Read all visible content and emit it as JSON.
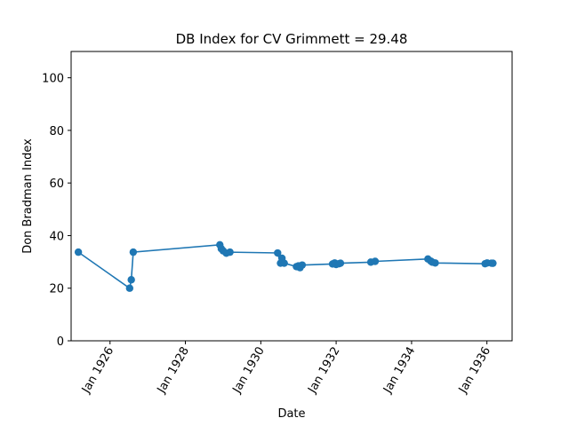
{
  "chart_data": {
    "type": "line",
    "title": "DB Index for CV Grimmett = 29.48",
    "xlabel": "Date",
    "ylabel": "Don Bradman Index",
    "ylim": [
      0,
      110
    ],
    "yticks": [
      0,
      20,
      40,
      60,
      80,
      100
    ],
    "xlim": [
      "1924-12-20",
      "1936-09-01"
    ],
    "xticks": [
      {
        "date": "1926-01-01",
        "label": "Jan 1926"
      },
      {
        "date": "1928-01-01",
        "label": "Jan 1928"
      },
      {
        "date": "1930-01-01",
        "label": "Jan 1930"
      },
      {
        "date": "1932-01-01",
        "label": "Jan 1932"
      },
      {
        "date": "1934-01-01",
        "label": "Jan 1934"
      },
      {
        "date": "1936-01-01",
        "label": "Jan 1936"
      }
    ],
    "grid": false,
    "color": "#1f77b4",
    "series": [
      {
        "points": [
          {
            "x": "1925-02-28",
            "y": 33.7
          },
          {
            "x": "1926-07-10",
            "y": 20.0
          },
          {
            "x": "1926-07-26",
            "y": 23.2
          },
          {
            "x": "1926-08-14",
            "y": 33.7
          },
          {
            "x": "1928-11-30",
            "y": 36.5
          },
          {
            "x": "1928-12-14",
            "y": 35.0
          },
          {
            "x": "1929-01-01",
            "y": 34.2
          },
          {
            "x": "1929-02-01",
            "y": 33.3
          },
          {
            "x": "1929-03-08",
            "y": 33.7
          },
          {
            "x": "1930-06-13",
            "y": 33.4
          },
          {
            "x": "1930-07-11",
            "y": 29.5
          },
          {
            "x": "1930-07-25",
            "y": 31.4
          },
          {
            "x": "1930-08-16",
            "y": 29.5
          },
          {
            "x": "1930-12-12",
            "y": 28.2
          },
          {
            "x": "1931-01-01",
            "y": 28.5
          },
          {
            "x": "1931-01-16",
            "y": 27.8
          },
          {
            "x": "1931-02-06",
            "y": 28.8
          },
          {
            "x": "1931-11-27",
            "y": 29.2
          },
          {
            "x": "1931-12-18",
            "y": 29.6
          },
          {
            "x": "1932-01-01",
            "y": 29.0
          },
          {
            "x": "1932-01-29",
            "y": 29.3
          },
          {
            "x": "1932-02-12",
            "y": 29.5
          },
          {
            "x": "1932-12-02",
            "y": 29.9
          },
          {
            "x": "1933-01-13",
            "y": 30.2
          },
          {
            "x": "1934-06-08",
            "y": 31.1
          },
          {
            "x": "1934-07-06",
            "y": 30.3
          },
          {
            "x": "1934-07-20",
            "y": 29.9
          },
          {
            "x": "1934-08-18",
            "y": 29.6
          },
          {
            "x": "1935-12-14",
            "y": 29.3
          },
          {
            "x": "1936-01-03",
            "y": 29.6
          },
          {
            "x": "1936-02-14",
            "y": 29.5
          },
          {
            "x": "1936-02-28",
            "y": 29.48
          }
        ]
      }
    ]
  }
}
